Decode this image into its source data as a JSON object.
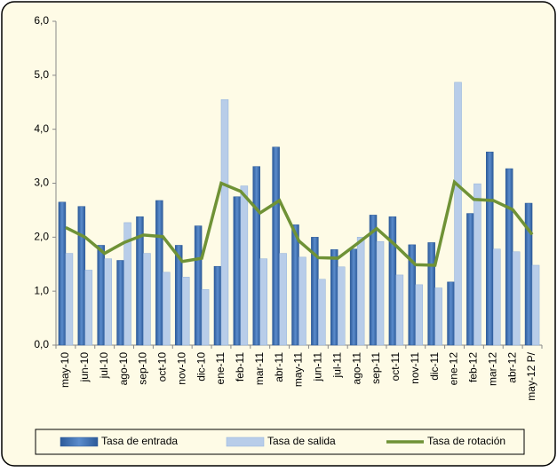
{
  "chart_data": {
    "type": "bar-line",
    "categories": [
      "may-10",
      "jun-10",
      "jul-10",
      "ago-10",
      "sep-10",
      "oct-10",
      "nov-10",
      "dic-10",
      "ene-11",
      "feb-11",
      "mar-11",
      "abr-11",
      "may-11",
      "jun-11",
      "jul-11",
      "ago-11",
      "sep-11",
      "oct-11",
      "nov-11",
      "dic-11",
      "ene-12",
      "feb-12",
      "mar-12",
      "abr-12",
      "may-12 P/"
    ],
    "series": [
      {
        "name": "Tasa de entrada",
        "type": "bar",
        "color": "#3f6fb1",
        "values": [
          2.65,
          2.57,
          1.85,
          1.57,
          2.38,
          2.68,
          1.85,
          2.21,
          1.46,
          2.75,
          3.31,
          3.67,
          2.23,
          2.0,
          1.77,
          1.78,
          2.41,
          2.38,
          1.86,
          1.9,
          1.17,
          2.44,
          3.58,
          3.27,
          2.63
        ]
      },
      {
        "name": "Tasa de salida",
        "type": "bar",
        "color": "#b8cde9",
        "values": [
          1.7,
          1.39,
          1.6,
          2.27,
          1.7,
          1.35,
          1.26,
          1.03,
          4.55,
          2.95,
          1.6,
          1.7,
          1.63,
          1.22,
          1.45,
          2.0,
          1.92,
          1.3,
          1.12,
          1.06,
          4.87,
          2.99,
          1.78,
          1.73,
          1.48
        ]
      },
      {
        "name": "Tasa de rotación",
        "type": "line",
        "color": "#6f9236",
        "values": [
          2.18,
          2.0,
          1.7,
          1.9,
          2.04,
          2.01,
          1.55,
          1.61,
          3.0,
          2.85,
          2.45,
          2.68,
          1.93,
          1.62,
          1.61,
          1.88,
          2.16,
          1.84,
          1.49,
          1.48,
          3.02,
          2.7,
          2.68,
          2.51,
          2.05
        ]
      }
    ],
    "ylim": [
      0,
      6
    ],
    "yticks": [
      {
        "value": 0,
        "label": "0,0"
      },
      {
        "value": 1,
        "label": "1,0"
      },
      {
        "value": 2,
        "label": "2,0"
      },
      {
        "value": 3,
        "label": "3,0"
      },
      {
        "value": 4,
        "label": "4,0"
      },
      {
        "value": 5,
        "label": "5,0"
      },
      {
        "value": 6,
        "label": "6,0"
      }
    ],
    "legend": "bottom"
  }
}
